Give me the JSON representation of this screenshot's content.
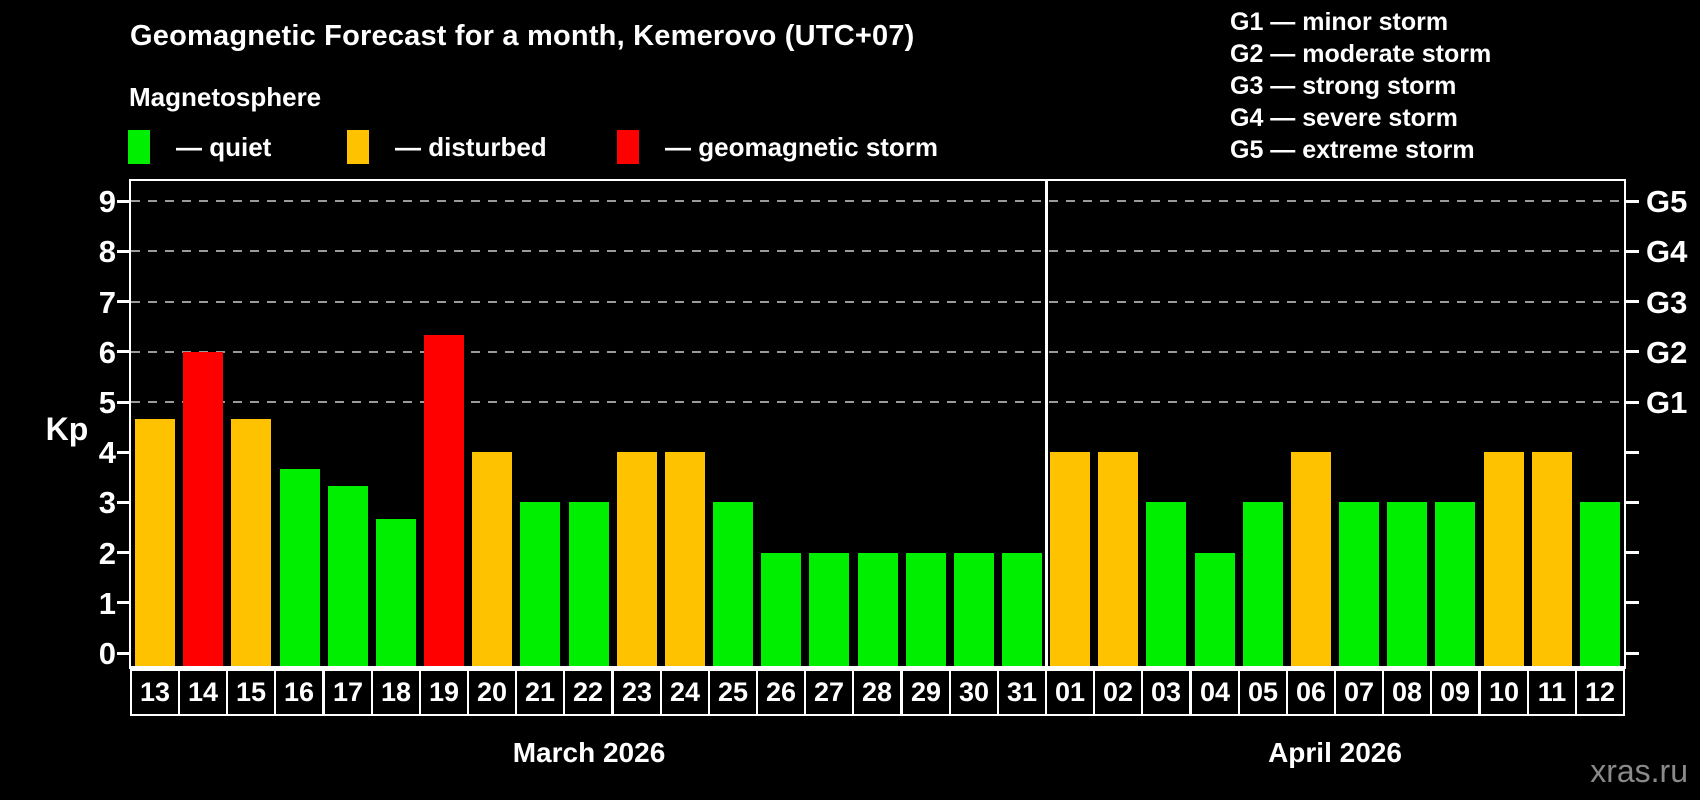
{
  "header": {
    "title": "Geomagnetic Forecast for a month, Kemerovo (UTC+07)",
    "subtitle": "Magnetosphere"
  },
  "legend": {
    "items": [
      {
        "label": "— quiet",
        "status": "quiet"
      },
      {
        "label": "— disturbed",
        "status": "disturbed"
      },
      {
        "label": "— geomagnetic storm",
        "status": "storm"
      }
    ]
  },
  "g_legend": [
    "G1 — minor storm",
    "G2 — moderate storm",
    "G3 — strong storm",
    "G4 — severe storm",
    "G5 — extreme storm"
  ],
  "axis": {
    "kp_label": "Kp",
    "y_ticks": [
      "0",
      "1",
      "2",
      "3",
      "4",
      "5",
      "6",
      "7",
      "8",
      "9"
    ],
    "g_ticks": [
      {
        "label": "G1",
        "kp": 5
      },
      {
        "label": "G2",
        "kp": 6
      },
      {
        "label": "G3",
        "kp": 7
      },
      {
        "label": "G4",
        "kp": 8
      },
      {
        "label": "G5",
        "kp": 9
      }
    ]
  },
  "watermark": "xras.ru",
  "colors": {
    "quiet": "#00ee00",
    "disturbed": "#ffc200",
    "storm": "#ff0000",
    "background": "#000000",
    "axis": "#ffffff",
    "grid": "#9a9a9a",
    "watermark": "#8a8a8a"
  },
  "chart_data": {
    "type": "bar",
    "title": "Geomagnetic Forecast for a month, Kemerovo (UTC+07)",
    "ylabel": "Kp",
    "ylim": [
      0,
      9.4
    ],
    "grid": "dashed horizontal at G-storm levels",
    "gridlines_at_kp": [
      5,
      6,
      7,
      8,
      9
    ],
    "legend_position": "top-left",
    "categories": [
      "13",
      "14",
      "15",
      "16",
      "17",
      "18",
      "19",
      "20",
      "21",
      "22",
      "23",
      "24",
      "25",
      "26",
      "27",
      "28",
      "29",
      "30",
      "31",
      "01",
      "02",
      "03",
      "04",
      "05",
      "06",
      "07",
      "08",
      "09",
      "10",
      "11",
      "12"
    ],
    "values": [
      4.67,
      6.0,
      4.67,
      3.67,
      3.33,
      2.67,
      6.33,
      4.0,
      3.0,
      3.0,
      4.0,
      4.0,
      3.0,
      2.0,
      2.0,
      2.0,
      2.0,
      2.0,
      2.0,
      4.0,
      4.0,
      3.0,
      2.0,
      3.0,
      4.0,
      3.0,
      3.0,
      3.0,
      4.0,
      4.0,
      3.0
    ],
    "statuses": [
      "disturbed",
      "storm",
      "disturbed",
      "quiet",
      "quiet",
      "quiet",
      "storm",
      "disturbed",
      "quiet",
      "quiet",
      "disturbed",
      "disturbed",
      "quiet",
      "quiet",
      "quiet",
      "quiet",
      "quiet",
      "quiet",
      "quiet",
      "disturbed",
      "disturbed",
      "quiet",
      "quiet",
      "quiet",
      "disturbed",
      "quiet",
      "quiet",
      "quiet",
      "disturbed",
      "disturbed",
      "quiet"
    ],
    "months": [
      {
        "label": "March 2026",
        "days": 19
      },
      {
        "label": "April 2026",
        "days": 12
      }
    ]
  }
}
